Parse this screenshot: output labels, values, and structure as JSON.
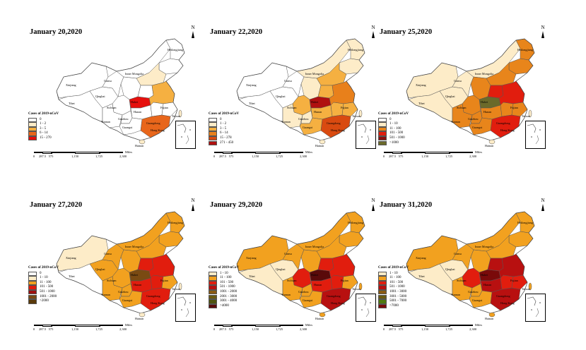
{
  "panels": [
    {
      "title": "January 20,2020",
      "legend_title": "Cases of 2019-nCoV",
      "legend": [
        {
          "label": "0",
          "color": "#ffffff"
        },
        {
          "label": "1 - 2",
          "color": "#fdecc8"
        },
        {
          "label": "3 - 5",
          "color": "#f5b041"
        },
        {
          "label": "6 - 14",
          "color": "#e8661b"
        },
        {
          "label": "15 - 270",
          "color": "#e6100d"
        }
      ]
    },
    {
      "title": "January 22,2020",
      "legend_title": "Cases of 2019-nCoV",
      "legend": [
        {
          "label": "0",
          "color": "#ffffff"
        },
        {
          "label": "1 - 2",
          "color": "#fdecc8"
        },
        {
          "label": "3 - 5",
          "color": "#f5b041"
        },
        {
          "label": "6 - 14",
          "color": "#e8801b"
        },
        {
          "label": "15 - 278",
          "color": "#d94a10"
        },
        {
          "label": "271 - 450",
          "color": "#b01010"
        }
      ]
    },
    {
      "title": "January 25,2020",
      "legend_title": "Cases of 2019-nCoV",
      "legend": [
        {
          "label": "0",
          "color": "#ffffff"
        },
        {
          "label": "1 - 10",
          "color": "#fdecc8"
        },
        {
          "label": "11 - 100",
          "color": "#e8851b"
        },
        {
          "label": "101 - 500",
          "color": "#e11d0e"
        },
        {
          "label": "501 - 1000",
          "color": "#8b1010"
        },
        {
          "label": ">1000",
          "color": "#6b6a2a"
        }
      ]
    },
    {
      "title": "January 27,2020",
      "legend_title": "Cases of 2019-nCoV",
      "legend": [
        {
          "label": "0",
          "color": "#ffffff"
        },
        {
          "label": "1 - 10",
          "color": "#fdecc8"
        },
        {
          "label": "11 - 100",
          "color": "#f2a11f"
        },
        {
          "label": "101 - 500",
          "color": "#e11d0e"
        },
        {
          "label": "501 - 1000",
          "color": "#9e1010"
        },
        {
          "label": "1001 - 2000",
          "color": "#7a4a12"
        },
        {
          "label": ">2000",
          "color": "#5a3a0a"
        }
      ]
    },
    {
      "title": "January 29,2020",
      "legend_title": "Cases of 2019-nCoV",
      "legend": [
        {
          "label": "1 - 10",
          "color": "#fdecc8"
        },
        {
          "label": "11 - 100",
          "color": "#f2a11f"
        },
        {
          "label": "101 - 500",
          "color": "#e11d0e"
        },
        {
          "label": "501 - 1000",
          "color": "#b81010"
        },
        {
          "label": "1001 - 2000",
          "color": "#8a5a12"
        },
        {
          "label": "2001 - 3000",
          "color": "#6b5a10"
        },
        {
          "label": "3001 - 4000",
          "color": "#4f5410"
        },
        {
          "label": ">4000",
          "color": "#5a0a0a"
        }
      ]
    },
    {
      "title": "January 31,2020",
      "legend_title": "Cases of 2019-nCoV",
      "legend": [
        {
          "label": "1 - 10",
          "color": "#fdecc8"
        },
        {
          "label": "11 - 100",
          "color": "#f2a11f"
        },
        {
          "label": "101 - 500",
          "color": "#e11d0e"
        },
        {
          "label": "501 - 1000",
          "color": "#b81010"
        },
        {
          "label": "1001 - 3000",
          "color": "#8a5a12"
        },
        {
          "label": "3001 - 5000",
          "color": "#6b5a10"
        },
        {
          "label": "5001 - 7000",
          "color": "#4f7a10"
        },
        {
          "label": ">7000",
          "color": "#7a0a0a"
        }
      ]
    }
  ],
  "north_label": "N",
  "scale_ticks": [
    "0",
    "287.5",
    "575",
    "1,150",
    "1,725",
    "2,300"
  ],
  "scale_unit": "Miles",
  "province_labels": {
    "heilongjiang": "Heilongjiang",
    "xinjiang": "Xinjiang",
    "gansu": "Gansu",
    "inner_mongolia": "Inner Mongolia",
    "qinghai": "Qinghai",
    "tibet": "Tibet",
    "sichuan": "Sichuan",
    "yunnan": "Yunnan",
    "guizhou": "Guizhou",
    "guangxi": "Guangxi",
    "hunan": "Hunan",
    "hubei": "Hubei",
    "fujian": "Fujian",
    "taiwan": "Taiwan",
    "hainan": "Hainan",
    "guangdong": "Guangdong",
    "hongkong": "Hong Kong"
  }
}
